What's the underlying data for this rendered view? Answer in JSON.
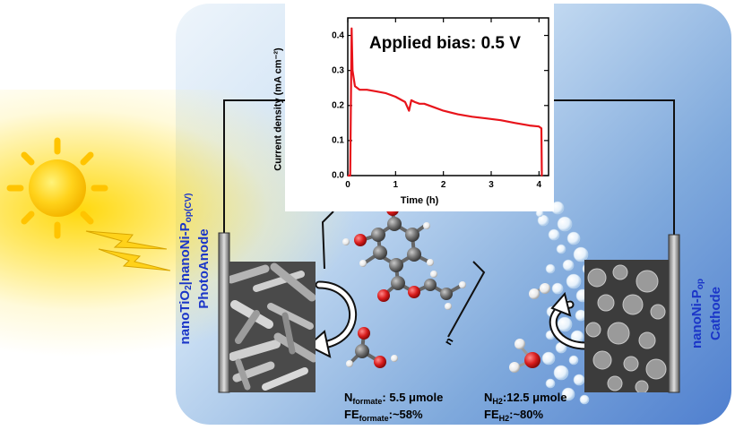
{
  "chart_data": {
    "type": "line",
    "title": "",
    "annotation": "Applied bias: 0.5 V",
    "xlabel": "Time (h)",
    "ylabel": "Current density (mA cm⁻²)",
    "xlim": [
      0,
      4.2
    ],
    "ylim": [
      0,
      0.45
    ],
    "xticks": [
      "0",
      "1",
      "2",
      "3",
      "4"
    ],
    "yticks": [
      "0.0",
      "0.1",
      "0.2",
      "0.3",
      "0.4"
    ],
    "series": [
      {
        "color": "#e8141b",
        "x": [
          0.0,
          0.05,
          0.08,
          0.1,
          0.15,
          0.25,
          0.4,
          0.6,
          0.8,
          1.0,
          1.2,
          1.28,
          1.33,
          1.4,
          1.5,
          1.6,
          1.8,
          2.0,
          2.3,
          2.6,
          2.9,
          3.2,
          3.5,
          3.8,
          4.0,
          4.05,
          4.06,
          4.07
        ],
        "values": [
          0.0,
          0.0,
          0.42,
          0.3,
          0.255,
          0.245,
          0.245,
          0.24,
          0.235,
          0.225,
          0.21,
          0.185,
          0.215,
          0.21,
          0.205,
          0.205,
          0.195,
          0.185,
          0.175,
          0.168,
          0.163,
          0.158,
          0.15,
          0.143,
          0.14,
          0.135,
          0.0,
          0.0
        ]
      }
    ]
  },
  "anode": {
    "line1": "nanoTiO",
    "sub1": "2",
    "line1b": "|nanoNi-P",
    "sub2": "op(CV)",
    "line2": "PhotoAnode"
  },
  "cathode": {
    "line1": "nanoNi-P",
    "sub1": "op",
    "line2": "Cathode"
  },
  "results": {
    "formate_n_label": "N",
    "formate_n_sub": "formate",
    "formate_n_value": ": 5.5 μmole",
    "formate_fe_label": "FE",
    "formate_fe_sub": "formate",
    "formate_fe_value": ":~58%",
    "h2_n_label": "N",
    "h2_n_sub": "H2",
    "h2_n_value": ":12.5 μmole",
    "h2_fe_label": "FE",
    "h2_fe_sub": "H2",
    "h2_fe_value": ":~80%"
  },
  "polymer_subscript": "n",
  "colors": {
    "curve": "#e8141b",
    "label_blue": "#1b36c8",
    "oxygen": "#d81c1c",
    "carbon": "#6f6f6f",
    "hydrogen": "#f2f2f2"
  }
}
